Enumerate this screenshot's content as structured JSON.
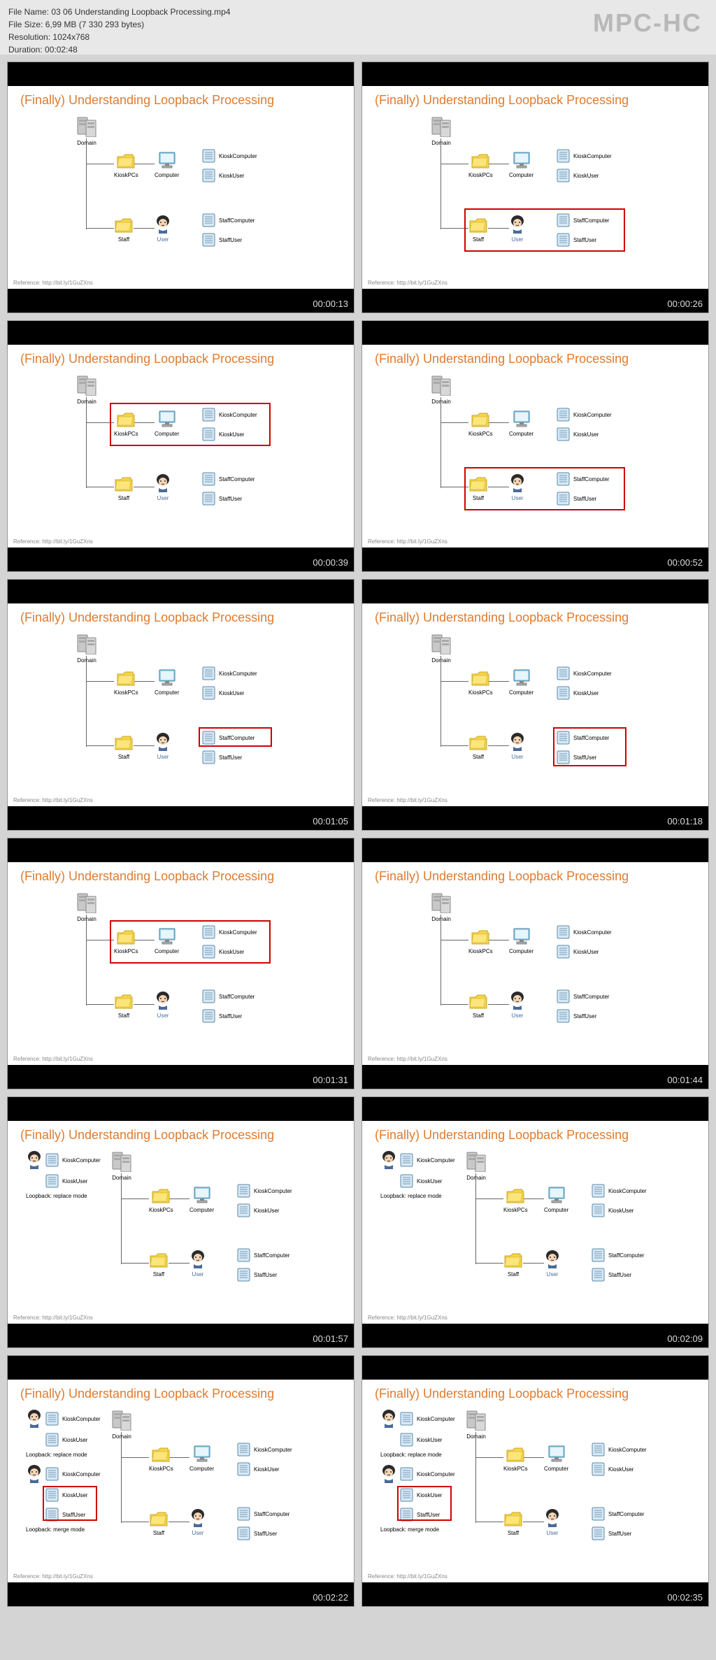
{
  "header": {
    "filename_label": "File Name:",
    "filename": "03 06 Understanding Loopback Processing.mp4",
    "filesize_label": "File Size:",
    "filesize": "6,99 MB (7 330 293 bytes)",
    "resolution_label": "Resolution:",
    "resolution": "1024x768",
    "duration_label": "Duration:",
    "duration": "00:02:48",
    "logo": "MPC-HC"
  },
  "slide": {
    "title": "(Finally) Understanding Loopback Processing",
    "reference": "Reference: http://bit.ly/1GuZXns"
  },
  "nodes": {
    "domain": "Domain",
    "kioskpcs": "KioskPCs",
    "computer": "Computer",
    "staff": "Staff",
    "user": "User",
    "kioskcomputer": "KioskComputer",
    "kioskuser": "KioskUser",
    "staffcomputer": "StaffComputer",
    "staffuser": "StaffUser",
    "replace_mode": "Loopback: replace mode",
    "merge_mode": "Loopback: merge mode"
  },
  "colors": {
    "title": "#e07b2e",
    "highlight": "#d00000",
    "folder_fill": "#f5d547",
    "folder_stroke": "#c9a82e",
    "computer_fill": "#9ad5f0",
    "computer_stroke": "#4a7a95",
    "scroll_fill": "#d8e8f5",
    "scroll_stroke": "#5a8aa8",
    "user_hair": "#2a2a2a",
    "user_face": "#f5d5b5",
    "server_fill": "#c8c8c8",
    "server_stroke": "#888"
  },
  "thumbs": [
    {
      "ts": "00:00:13",
      "hl": null,
      "left": false
    },
    {
      "ts": "00:00:26",
      "hl": "staff-row",
      "left": false
    },
    {
      "ts": "00:00:39",
      "hl": "kiosk-row",
      "left": false
    },
    {
      "ts": "00:00:52",
      "hl": "staff-row",
      "left": false
    },
    {
      "ts": "00:01:05",
      "hl": "staff-computer",
      "left": false
    },
    {
      "ts": "00:01:18",
      "hl": "staff-both",
      "left": false
    },
    {
      "ts": "00:01:31",
      "hl": "kiosk-row",
      "left": false
    },
    {
      "ts": "00:01:44",
      "hl": null,
      "left": false
    },
    {
      "ts": "00:01:57",
      "hl": null,
      "left": "replace"
    },
    {
      "ts": "00:02:09",
      "hl": null,
      "left": "replace"
    },
    {
      "ts": "00:02:22",
      "hl": "merge-box",
      "left": "merge"
    },
    {
      "ts": "00:02:35",
      "hl": "merge-box",
      "left": "merge"
    }
  ]
}
